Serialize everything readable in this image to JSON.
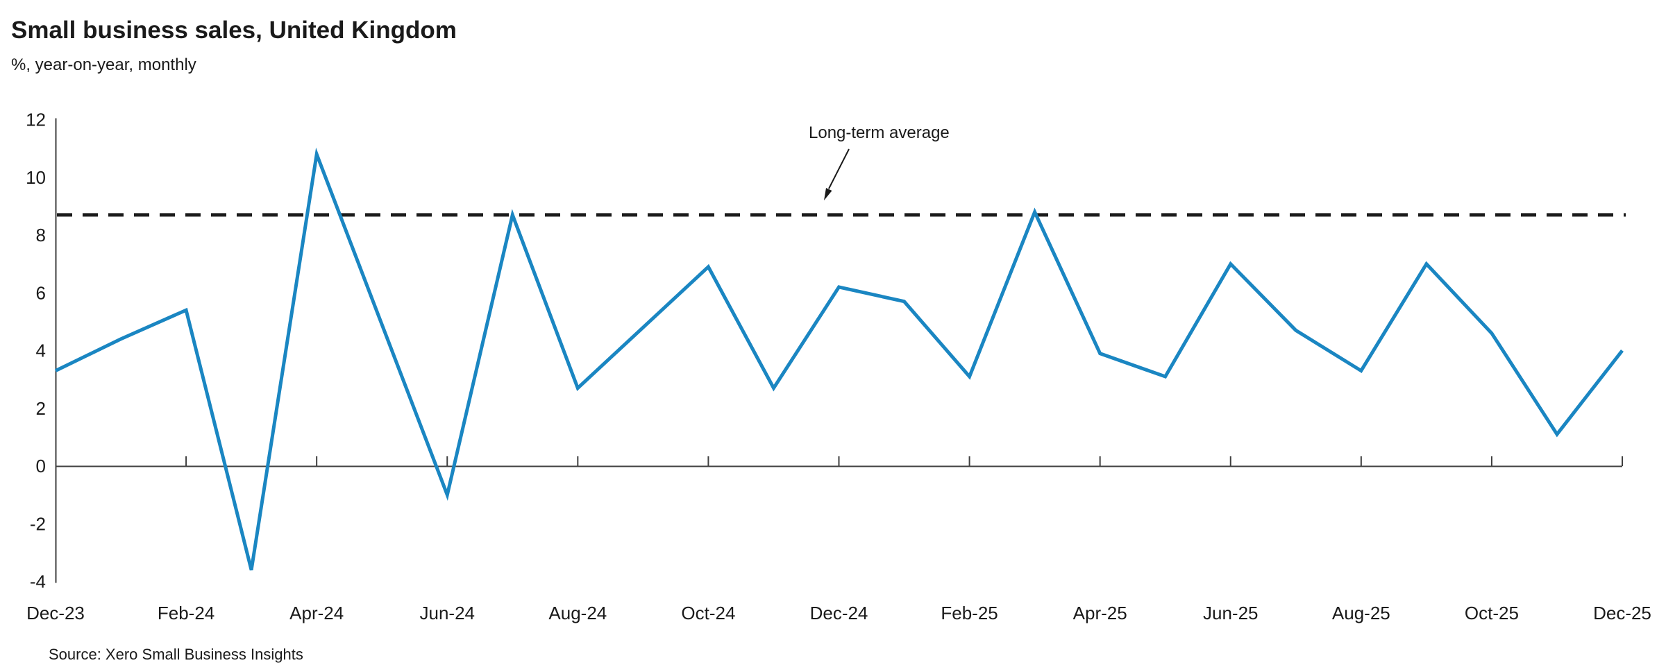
{
  "header": {
    "title": "Small business sales, United Kingdom",
    "subtitle": "%, year-on-year, monthly"
  },
  "chart_data": {
    "type": "line",
    "title": "Small business sales, United Kingdom",
    "subtitle": "%, year-on-year, monthly",
    "x": [
      "Dec-23",
      "Jan-24",
      "Feb-24",
      "Mar-24",
      "Apr-24",
      "May-24",
      "Jun-24",
      "Jul-24",
      "Aug-24",
      "Sep-24",
      "Oct-24",
      "Nov-24",
      "Dec-24",
      "Jan-25",
      "Feb-25",
      "Mar-25",
      "Apr-25",
      "May-25",
      "Jun-25",
      "Jul-25",
      "Aug-25",
      "Sep-25",
      "Oct-25",
      "Nov-25",
      "Dec-25"
    ],
    "series": [
      {
        "name": "Small business sales",
        "values": [
          3.3,
          4.4,
          5.4,
          -3.6,
          10.8,
          4.9,
          -1.0,
          8.7,
          2.7,
          4.8,
          6.9,
          2.7,
          6.2,
          5.7,
          3.1,
          8.8,
          3.9,
          3.1,
          7.0,
          4.7,
          3.3,
          7.0,
          4.6,
          1.1,
          4.0
        ]
      }
    ],
    "reference_line": {
      "label": "Long-term average",
      "value": 8.7,
      "style": "dashed"
    },
    "xticklabels": [
      "Dec-23",
      "Feb-24",
      "Apr-24",
      "Jun-24",
      "Aug-24",
      "Oct-24",
      "Dec-24",
      "Feb-25",
      "Apr-25",
      "Jun-25",
      "Aug-25",
      "Oct-25",
      "Dec-25"
    ],
    "yticks": [
      12,
      10,
      8,
      6,
      4,
      2,
      0,
      -2,
      -4
    ],
    "ytick_labels": [
      "12",
      "10",
      "8",
      "6",
      "4",
      "2",
      "0",
      "-2",
      "-4"
    ],
    "ylim": [
      -4,
      12
    ],
    "grid": false,
    "legend": false
  },
  "footer": {
    "source": "Source: Xero Small Business Insights"
  },
  "colors": {
    "line": "#1a86c2",
    "reference": "#1a1a1a",
    "axis": "#3f3f3f",
    "text": "#1a1a1a"
  }
}
